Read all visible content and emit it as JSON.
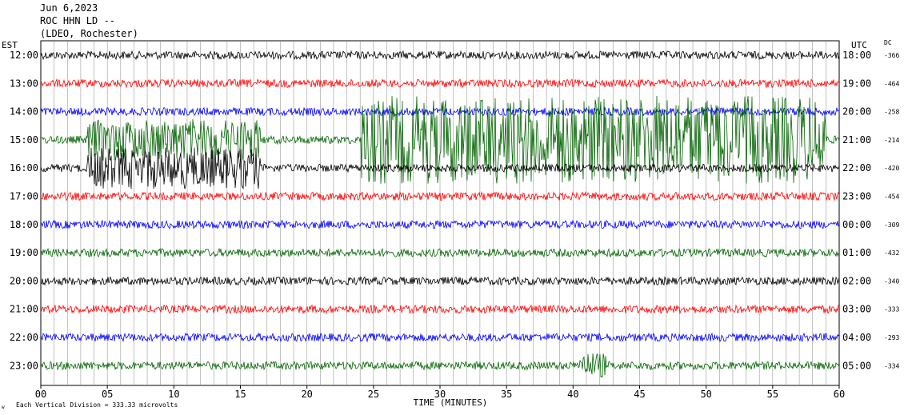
{
  "header": {
    "date": "Jun 6,2023",
    "station": "ROC HHN LD --",
    "network": "(LDEO, Rochester)"
  },
  "left_axis_label": "EST",
  "right_axis_label": "UTC",
  "dc_label": "DC",
  "footer": {
    "scale_note": "Each Vertical Division = 333.33 microvolts",
    "corner_mark": "w"
  },
  "chart_data": {
    "type": "line",
    "title": "",
    "xlabel": "TIME (MINUTES)",
    "xlim": [
      0,
      60
    ],
    "xticks": [
      "00",
      "05",
      "10",
      "15",
      "20",
      "25",
      "30",
      "35",
      "40",
      "45",
      "50",
      "55",
      "60"
    ],
    "trace_colors": [
      "#000000",
      "#ff0000",
      "#0000ff",
      "#006400"
    ],
    "rows": [
      {
        "est": "12:00",
        "utc": "18:00",
        "dc": "-366"
      },
      {
        "est": "13:00",
        "utc": "19:00",
        "dc": "-464"
      },
      {
        "est": "14:00",
        "utc": "20:00",
        "dc": "-258"
      },
      {
        "est": "15:00",
        "utc": "21:00",
        "dc": "-214"
      },
      {
        "est": "16:00",
        "utc": "22:00",
        "dc": "-420"
      },
      {
        "est": "17:00",
        "utc": "23:00",
        "dc": "-454"
      },
      {
        "est": "18:00",
        "utc": "00:00",
        "dc": "-309"
      },
      {
        "est": "19:00",
        "utc": "01:00",
        "dc": "-432"
      },
      {
        "est": "20:00",
        "utc": "02:00",
        "dc": "-340"
      },
      {
        "est": "21:00",
        "utc": "03:00",
        "dc": "-333"
      },
      {
        "est": "22:00",
        "utc": "04:00",
        "dc": "-293"
      },
      {
        "est": "23:00",
        "utc": "05:00",
        "dc": "-334"
      }
    ]
  }
}
